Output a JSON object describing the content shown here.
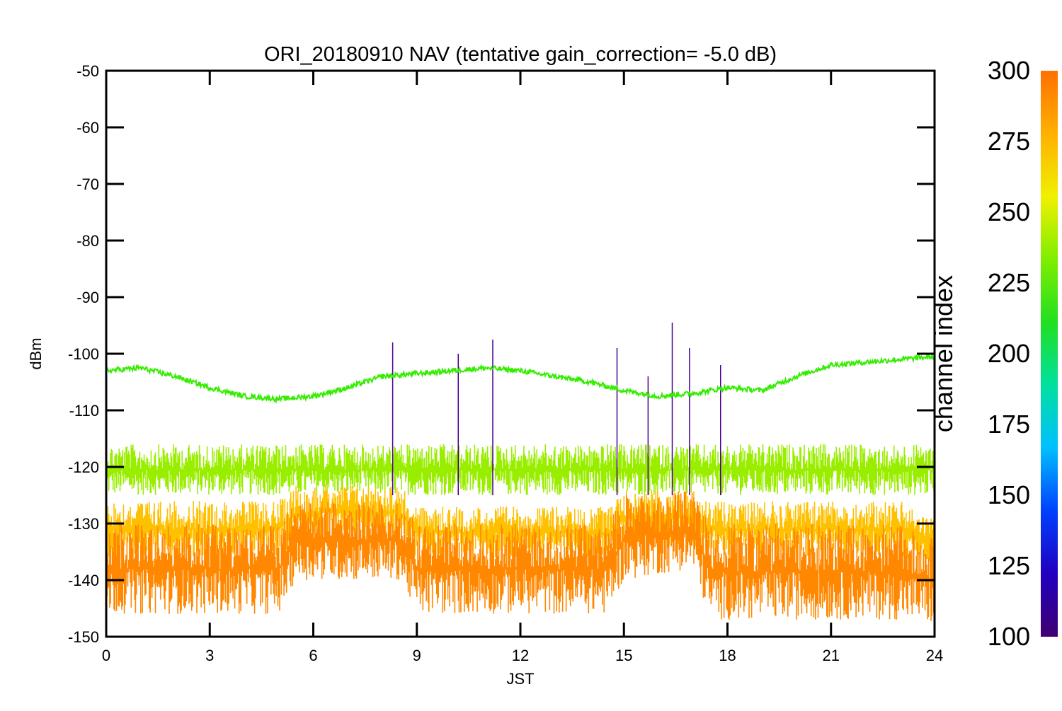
{
  "chart_data": {
    "type": "line",
    "title": "ORI_20180910 NAV (tentative gain_correction= -5.0 dB)",
    "xlabel": "JST",
    "ylabel": "dBm",
    "xlim": [
      0,
      24
    ],
    "ylim": [
      -150,
      -50
    ],
    "x_ticks": [
      "0",
      "3",
      "6",
      "9",
      "12",
      "15",
      "18",
      "21",
      "24"
    ],
    "y_ticks": [
      "-50",
      "-60",
      "-70",
      "-80",
      "-90",
      "-100",
      "-110",
      "-120",
      "-130",
      "-140",
      "-150"
    ],
    "grid": false,
    "colorbar": {
      "label": "channel index",
      "range": [
        100,
        300
      ],
      "ticks": [
        "100",
        "125",
        "150",
        "175",
        "200",
        "225",
        "250",
        "275",
        "300"
      ],
      "colormap": [
        "#400070",
        "#2000c0",
        "#0040ff",
        "#00c0ff",
        "#00e0a0",
        "#20e020",
        "#80ee00",
        "#f0f000",
        "#ffb000",
        "#ff7000"
      ]
    },
    "series": [
      {
        "channel_index": 240,
        "color": "#33ee00",
        "x": [
          0,
          1,
          2,
          3,
          4,
          5,
          6,
          7,
          8,
          9,
          10,
          11,
          12,
          13,
          14,
          15,
          16,
          17,
          18,
          19,
          20,
          21,
          22,
          23,
          24
        ],
        "y": [
          -103,
          -102.5,
          -104,
          -106,
          -107.5,
          -108,
          -107.5,
          -106,
          -104,
          -103.5,
          -103,
          -102.5,
          -103,
          -104,
          -105,
          -106.5,
          -107.5,
          -107,
          -106,
          -106.5,
          -104,
          -102,
          -101.5,
          -101,
          -100.5
        ]
      },
      {
        "channel_index": 262,
        "color": "#99ee00",
        "x": [
          0,
          3,
          6,
          9,
          12,
          15,
          18,
          21,
          24
        ],
        "y_min": [
          -125,
          -125,
          -125,
          -125,
          -125,
          -125,
          -125,
          -125,
          -125
        ],
        "y_max": [
          -116,
          -116,
          -116,
          -116,
          -116,
          -116,
          -116,
          -116,
          -116
        ]
      },
      {
        "channel_index": 285,
        "color": "#ffc000",
        "x": [
          0,
          5,
          5.5,
          8.5,
          9,
          14.5,
          15,
          17,
          17.5,
          23,
          24
        ],
        "y_min": [
          -136,
          -136,
          -133,
          -133,
          -136,
          -136,
          -134,
          -134,
          -136,
          -136,
          -137
        ],
        "y_max": [
          -126,
          -126,
          -123,
          -123,
          -127,
          -127,
          -124,
          -124,
          -126,
          -126,
          -129
        ]
      },
      {
        "channel_index": 298,
        "color": "#ff8800",
        "x": [
          0,
          5,
          5.5,
          8.5,
          9,
          14.5,
          15,
          17,
          17.5,
          23,
          24
        ],
        "y_min": [
          -146,
          -146,
          -140,
          -140,
          -146,
          -146,
          -140,
          -138,
          -147,
          -147,
          -148
        ],
        "y_max": [
          -130,
          -130,
          -126,
          -126,
          -130,
          -130,
          -125,
          -124,
          -130,
          -130,
          -132
        ]
      }
    ],
    "spikes": [
      {
        "x": 8.3,
        "y": -98
      },
      {
        "x": 10.2,
        "y": -100
      },
      {
        "x": 11.2,
        "y": -97.5
      },
      {
        "x": 14.8,
        "y": -99
      },
      {
        "x": 15.7,
        "y": -104
      },
      {
        "x": 16.4,
        "y": -94.5
      },
      {
        "x": 16.9,
        "y": -99
      },
      {
        "x": 17.8,
        "y": -102
      }
    ]
  }
}
